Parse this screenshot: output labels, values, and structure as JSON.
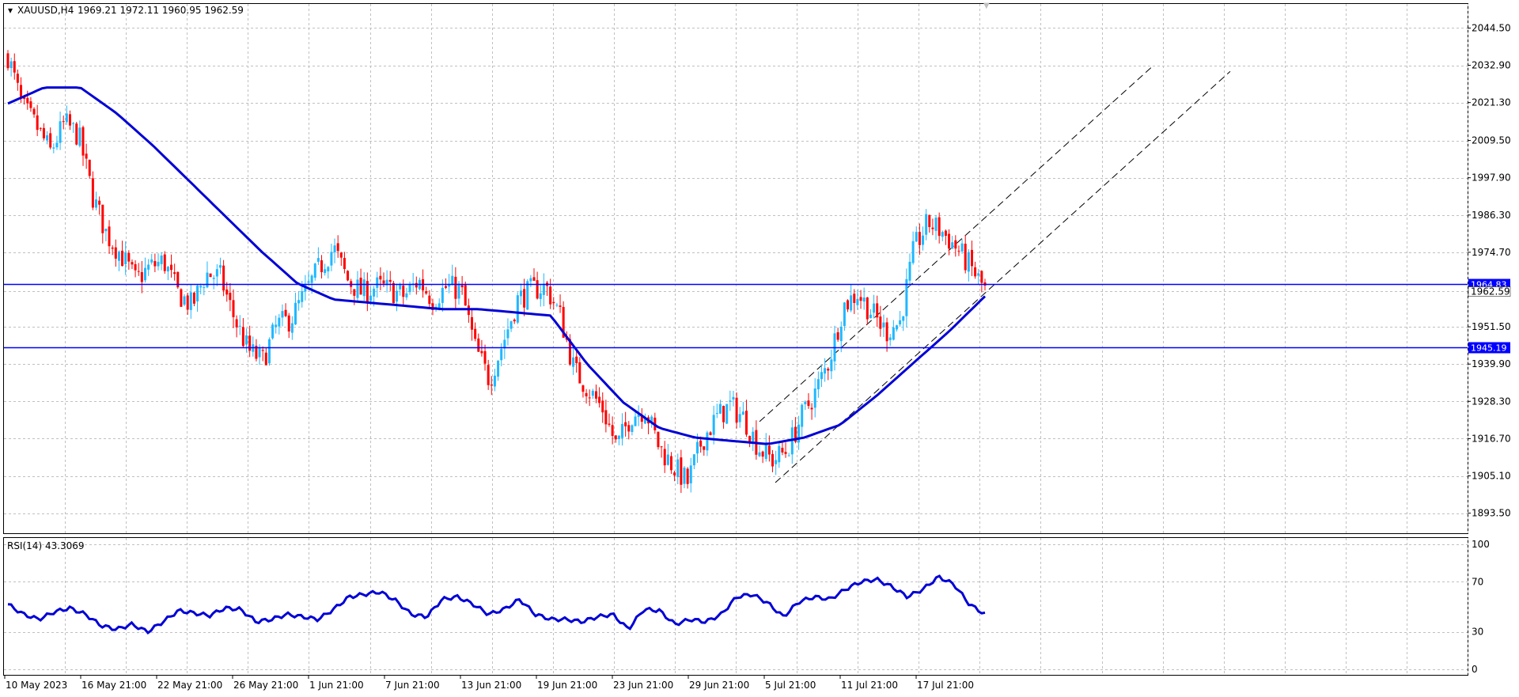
{
  "header": {
    "symbol": "XAUUSD,H4",
    "ohlc": "1969.21 1972.11 1960.95 1962.59"
  },
  "rsi_header": "RSI(14) 43.3069",
  "colors": {
    "bull": "#1fb8ff",
    "bear": "#ff0000",
    "ma": "#0000d6",
    "rsi": "#0000d6",
    "hline": "#0000ff",
    "grid": "#c0c0c0",
    "channel": "#000000"
  },
  "chart_data": [
    {
      "type": "candlestick",
      "title": "XAUUSD,H4",
      "ylim": [
        1887,
        2052
      ],
      "y_ticks": [
        "2044.50",
        "2032.90",
        "2021.30",
        "2009.50",
        "1997.90",
        "1986.30",
        "1974.70",
        "1962.59",
        "1951.50",
        "1939.90",
        "1928.30",
        "1916.70",
        "1905.10",
        "1893.50"
      ],
      "x_ticks": [
        "10 May 2023",
        "16 May 21:00",
        "22 May 21:00",
        "26 May 21:00",
        "1 Jun 21:00",
        "7 Jun 21:00",
        "13 Jun 21:00",
        "19 Jun 21:00",
        "23 Jun 21:00",
        "29 Jun 21:00",
        "5 Jul 21:00",
        "11 Jul 21:00",
        "17 Jul 21:00"
      ],
      "horizontal_lines": [
        {
          "price": 1964.83,
          "label": "1964.83"
        },
        {
          "price": 1945.19,
          "label": "1945.19"
        }
      ],
      "current_price": {
        "price": 1962.59,
        "label": "1962.59"
      },
      "moving_average": [
        2021,
        2026,
        2026,
        2018,
        2008,
        1997,
        1986,
        1975,
        1965,
        1960,
        1959,
        1958,
        1957,
        1957,
        1956,
        1955,
        1940,
        1928,
        1920,
        1917,
        1916,
        1915,
        1917,
        1921,
        1930,
        1940,
        1950,
        1961
      ],
      "price_path": [
        2036,
        2020,
        2014,
        2006,
        2015,
        2011,
        1992,
        1980,
        1974,
        1966,
        1970,
        1972,
        1962,
        1958,
        1968,
        1967,
        1954,
        1944,
        1941,
        1952,
        1954,
        1962,
        1970,
        1976,
        1966,
        1962,
        1964,
        1963,
        1961,
        1966,
        1960,
        1964,
        1963,
        1945,
        1935,
        1947,
        1960,
        1963,
        1964,
        1955,
        1938,
        1932,
        1926,
        1914,
        1924,
        1926,
        1914,
        1908,
        1903,
        1916,
        1923,
        1927,
        1923,
        1914,
        1910,
        1913,
        1923,
        1931,
        1941,
        1958,
        1962,
        1956,
        1950,
        1953,
        1976,
        1984,
        1981,
        1976,
        1970,
        1963
      ]
    },
    {
      "type": "line",
      "title": "RSI(14) 43.3069",
      "ylim": [
        0,
        100
      ],
      "y_ticks": [
        "100",
        "70",
        "30",
        "0"
      ],
      "rsi_values": [
        52,
        44,
        40,
        46,
        49,
        44,
        35,
        32,
        36,
        30,
        38,
        47,
        45,
        43,
        49,
        48,
        38,
        40,
        44,
        42,
        40,
        48,
        58,
        60,
        62,
        55,
        44,
        42,
        56,
        58,
        52,
        44,
        48,
        56,
        44,
        40,
        40,
        38,
        42,
        44,
        32,
        48,
        47,
        36,
        40,
        38,
        44,
        58,
        60,
        53,
        42,
        54,
        58,
        56,
        64,
        70,
        72,
        66,
        58,
        64,
        74,
        68,
        52,
        44
      ]
    }
  ]
}
